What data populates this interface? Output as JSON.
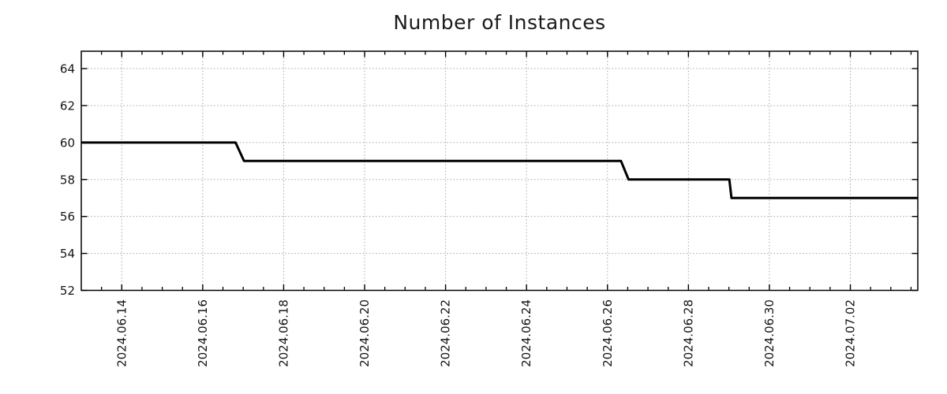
{
  "chart_data": {
    "type": "line",
    "title": "Number of Instances",
    "grid": "dotted",
    "legend": "none",
    "colors": {
      "line": "#000000",
      "grid": "#a6a6a6",
      "axis": "#000000",
      "text": "#141414",
      "title": "#1a1a1a",
      "background": "#ffffff"
    },
    "x_axis": {
      "min": "2024-06-13 00:00",
      "max": "2024-07-03 16:00",
      "minor_tick_hours": 12,
      "label_rotation_deg": -90,
      "ticks": [
        {
          "label": "2024.06.14",
          "date": "2024-06-14 00:00"
        },
        {
          "label": "2024.06.16",
          "date": "2024-06-16 00:00"
        },
        {
          "label": "2024.06.18",
          "date": "2024-06-18 00:00"
        },
        {
          "label": "2024.06.20",
          "date": "2024-06-20 00:00"
        },
        {
          "label": "2024.06.22",
          "date": "2024-06-22 00:00"
        },
        {
          "label": "2024.06.24",
          "date": "2024-06-24 00:00"
        },
        {
          "label": "2024.06.26",
          "date": "2024-06-26 00:00"
        },
        {
          "label": "2024.06.28",
          "date": "2024-06-28 00:00"
        },
        {
          "label": "2024.06.30",
          "date": "2024-06-30 00:00"
        },
        {
          "label": "2024.07.02",
          "date": "2024-07-02 00:00"
        }
      ]
    },
    "y_axis": {
      "min": 52,
      "max": 64.94,
      "ticks": [
        52,
        54,
        56,
        58,
        60,
        62,
        64
      ]
    },
    "series": [
      {
        "points": [
          [
            "2024-06-13 00:00",
            60
          ],
          [
            "2024-06-16 19:30",
            60
          ],
          [
            "2024-06-17 00:30",
            59
          ],
          [
            "2024-06-26 08:00",
            59
          ],
          [
            "2024-06-26 12:30",
            58
          ],
          [
            "2024-06-29 00:15",
            58
          ],
          [
            "2024-06-29 01:30",
            57
          ],
          [
            "2024-07-03 16:00",
            57
          ]
        ]
      }
    ]
  }
}
